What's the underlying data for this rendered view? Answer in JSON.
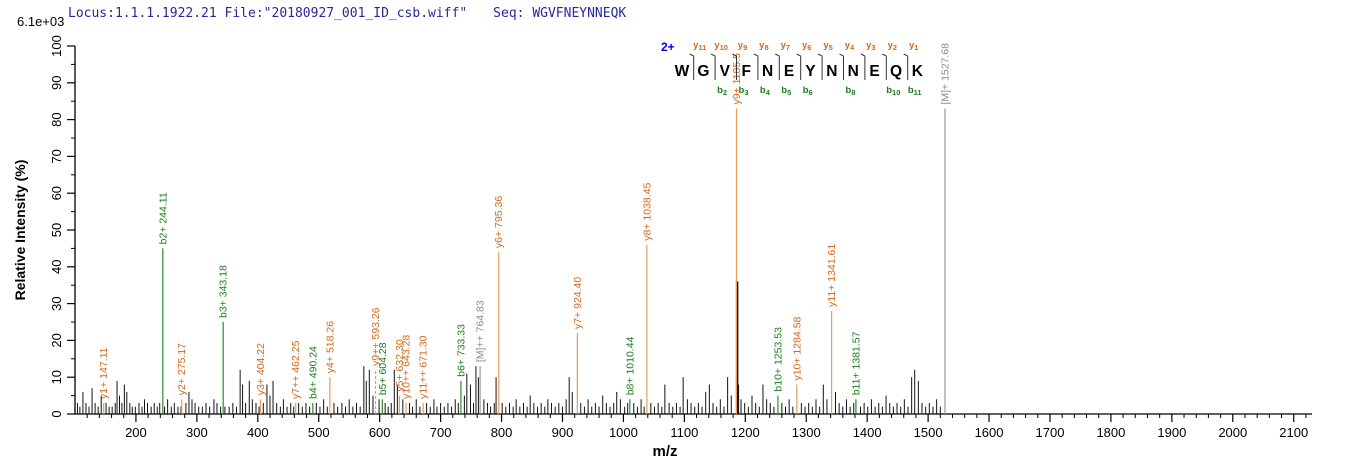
{
  "header": {
    "locus_file": "Locus:1.1.1.1922.21 File:\"20180927_001_ID_csb.wiff\"",
    "seq_prefix": "Seq:",
    "sequence": "WGVFNEYNNEQK"
  },
  "colors": {
    "y_ion_text": "#D2691E",
    "y_ion_line": "#E79B5E",
    "b_ion_text": "#1E7D1E",
    "b_ion_line": "#2E8B2E",
    "precursor_text": "#8C8C8C",
    "precursor_line": "#999999",
    "peak": "#111111",
    "axis": "#000000",
    "title": "#28289B",
    "charge": "#0000EE"
  },
  "sequence_panel": {
    "charge_label": "2+",
    "residues": [
      "W",
      "G",
      "V",
      "F",
      "N",
      "E",
      "Y",
      "N",
      "N",
      "E",
      "Q",
      "K"
    ],
    "fragments": [
      {
        "boundary": 1,
        "y_ion": "y11",
        "b_ion": null
      },
      {
        "boundary": 2,
        "y_ion": "y10",
        "b_ion": "b2"
      },
      {
        "boundary": 3,
        "y_ion": "y9",
        "b_ion": "b3"
      },
      {
        "boundary": 4,
        "y_ion": "y8",
        "b_ion": "b4"
      },
      {
        "boundary": 5,
        "y_ion": "y7",
        "b_ion": "b5"
      },
      {
        "boundary": 6,
        "y_ion": "y6",
        "b_ion": "b6"
      },
      {
        "boundary": 7,
        "y_ion": "y5",
        "b_ion": null
      },
      {
        "boundary": 8,
        "y_ion": "y4",
        "b_ion": "b8"
      },
      {
        "boundary": 9,
        "y_ion": "y3",
        "b_ion": null
      },
      {
        "boundary": 10,
        "y_ion": "y2",
        "b_ion": "b10"
      },
      {
        "boundary": 11,
        "y_ion": "y1",
        "b_ion": "b11"
      }
    ]
  },
  "chart_data": {
    "type": "bar",
    "subtype": "mass-spectrum",
    "title": "",
    "xlabel": "m/z",
    "ylabel": "Relative  Intensity (%)",
    "intensity_scale": "6.1e+03",
    "xlim": [
      100,
      2130
    ],
    "ylim": [
      0,
      100
    ],
    "x_major_ticks": [
      200,
      300,
      400,
      500,
      600,
      700,
      800,
      900,
      1000,
      1100,
      1200,
      1300,
      1400,
      1500,
      1600,
      1700,
      1800,
      1900,
      2000,
      2100
    ],
    "x_minor_step": 20,
    "y_major_ticks": [
      0,
      10,
      20,
      30,
      40,
      50,
      60,
      70,
      80,
      90,
      100
    ],
    "y_minor_step": 5,
    "grid": false,
    "annotated_peaks": [
      {
        "label": "y1+ 147.11",
        "mz": 147.11,
        "intensity": 3,
        "type": "y"
      },
      {
        "label": "b2+ 244.11",
        "mz": 244.11,
        "intensity": 45,
        "type": "b"
      },
      {
        "label": "y2+ 275.17",
        "mz": 275.17,
        "intensity": 4,
        "type": "y"
      },
      {
        "label": "b3+ 343.18",
        "mz": 343.18,
        "intensity": 25,
        "type": "b"
      },
      {
        "label": "y3+ 404.22",
        "mz": 404.22,
        "intensity": 4,
        "type": "y"
      },
      {
        "label": "y7++ 462.25",
        "mz": 462.25,
        "intensity": 3,
        "type": "y"
      },
      {
        "label": "b4+ 490.24",
        "mz": 490.24,
        "intensity": 3,
        "type": "b"
      },
      {
        "label": "y4+ 518.26",
        "mz": 518.26,
        "intensity": 10,
        "type": "y"
      },
      {
        "label": "y9++ 593.26",
        "mz": 593.26,
        "intensity": 12,
        "type": "y",
        "dashed": true
      },
      {
        "label": "b5+ 604.28",
        "mz": 604.28,
        "intensity": 4,
        "type": "b"
      },
      {
        "label": "y5+ 632.30",
        "mz": 632.3,
        "intensity": 5,
        "type": "y"
      },
      {
        "label": "y10++ 643.28",
        "mz": 643.28,
        "intensity": 3,
        "type": "y"
      },
      {
        "label": "y11++ 671.30",
        "mz": 671.3,
        "intensity": 3,
        "type": "y"
      },
      {
        "label": "b6+ 733.33",
        "mz": 733.33,
        "intensity": 9,
        "type": "b"
      },
      {
        "label": "[M]++ 764.83",
        "mz": 764.83,
        "intensity": 13,
        "type": "M"
      },
      {
        "label": "y6+ 795.36",
        "mz": 795.36,
        "intensity": 44,
        "type": "y"
      },
      {
        "label": "y7+ 924.40",
        "mz": 924.4,
        "intensity": 22,
        "type": "y"
      },
      {
        "label": "b8+ 1010.44",
        "mz": 1010.44,
        "intensity": 4,
        "type": "b"
      },
      {
        "label": "y8+ 1038.45",
        "mz": 1038.45,
        "intensity": 46,
        "type": "y"
      },
      {
        "label": "y9+ 1185.5",
        "mz": 1185.5,
        "intensity": 83,
        "type": "y"
      },
      {
        "label": "b10+ 1253.53",
        "mz": 1253.53,
        "intensity": 5,
        "type": "b"
      },
      {
        "label": "y10+ 1284.58",
        "mz": 1284.58,
        "intensity": 8,
        "type": "y"
      },
      {
        "label": "y11+ 1341.61",
        "mz": 1341.61,
        "intensity": 28,
        "type": "y"
      },
      {
        "label": "b11+ 1381.57",
        "mz": 1381.57,
        "intensity": 4,
        "type": "b"
      },
      {
        "label": "[M]+ 1527.68",
        "mz": 1527.68,
        "intensity": 83,
        "type": "M"
      }
    ],
    "background_peaks": [
      [
        104,
        3
      ],
      [
        108,
        2
      ],
      [
        113,
        6
      ],
      [
        118,
        3
      ],
      [
        123,
        2
      ],
      [
        128,
        7
      ],
      [
        133,
        3
      ],
      [
        138,
        2
      ],
      [
        143,
        5
      ],
      [
        151,
        3
      ],
      [
        156,
        2
      ],
      [
        161,
        2
      ],
      [
        166,
        3
      ],
      [
        169,
        9
      ],
      [
        173,
        5
      ],
      [
        177,
        3
      ],
      [
        181,
        8
      ],
      [
        185,
        6
      ],
      [
        190,
        3
      ],
      [
        194,
        2
      ],
      [
        199,
        2
      ],
      [
        205,
        3
      ],
      [
        210,
        2
      ],
      [
        214,
        4
      ],
      [
        219,
        3
      ],
      [
        225,
        2
      ],
      [
        230,
        3
      ],
      [
        235,
        2
      ],
      [
        239,
        3
      ],
      [
        247,
        2
      ],
      [
        252,
        4
      ],
      [
        258,
        2
      ],
      [
        263,
        3
      ],
      [
        269,
        2
      ],
      [
        274,
        2
      ],
      [
        282,
        3
      ],
      [
        287,
        6
      ],
      [
        292,
        4
      ],
      [
        297,
        3
      ],
      [
        303,
        2
      ],
      [
        309,
        2
      ],
      [
        315,
        3
      ],
      [
        321,
        2
      ],
      [
        328,
        4
      ],
      [
        333,
        3
      ],
      [
        339,
        2
      ],
      [
        346,
        2
      ],
      [
        353,
        2
      ],
      [
        359,
        3
      ],
      [
        365,
        2
      ],
      [
        371,
        12
      ],
      [
        375,
        8
      ],
      [
        380,
        3
      ],
      [
        386,
        9
      ],
      [
        391,
        4
      ],
      [
        397,
        3
      ],
      [
        402,
        2
      ],
      [
        409,
        3
      ],
      [
        415,
        8
      ],
      [
        420,
        5
      ],
      [
        425,
        9
      ],
      [
        431,
        3
      ],
      [
        437,
        2
      ],
      [
        442,
        4
      ],
      [
        448,
        2
      ],
      [
        454,
        3
      ],
      [
        459,
        2
      ],
      [
        467,
        3
      ],
      [
        473,
        2
      ],
      [
        479,
        3
      ],
      [
        485,
        2
      ],
      [
        496,
        3
      ],
      [
        502,
        2
      ],
      [
        508,
        4
      ],
      [
        514,
        2
      ],
      [
        525,
        3
      ],
      [
        531,
        2
      ],
      [
        538,
        3
      ],
      [
        544,
        2
      ],
      [
        550,
        4
      ],
      [
        556,
        2
      ],
      [
        562,
        3
      ],
      [
        568,
        2
      ],
      [
        574,
        13
      ],
      [
        578,
        9
      ],
      [
        583,
        12
      ],
      [
        589,
        5
      ],
      [
        599,
        4
      ],
      [
        609,
        3
      ],
      [
        614,
        2
      ],
      [
        619,
        3
      ],
      [
        624,
        12
      ],
      [
        629,
        8
      ],
      [
        638,
        4
      ],
      [
        649,
        3
      ],
      [
        654,
        2
      ],
      [
        660,
        4
      ],
      [
        666,
        2
      ],
      [
        677,
        3
      ],
      [
        683,
        2
      ],
      [
        689,
        4
      ],
      [
        694,
        2
      ],
      [
        700,
        3
      ],
      [
        706,
        2
      ],
      [
        712,
        3
      ],
      [
        718,
        2
      ],
      [
        724,
        4
      ],
      [
        729,
        3
      ],
      [
        739,
        5
      ],
      [
        743,
        11
      ],
      [
        749,
        8
      ],
      [
        754,
        3
      ],
      [
        758,
        13
      ],
      [
        762,
        10
      ],
      [
        771,
        4
      ],
      [
        777,
        3
      ],
      [
        782,
        2
      ],
      [
        788,
        3
      ],
      [
        791,
        10
      ],
      [
        801,
        3
      ],
      [
        807,
        2
      ],
      [
        813,
        3
      ],
      [
        819,
        2
      ],
      [
        824,
        4
      ],
      [
        830,
        2
      ],
      [
        836,
        3
      ],
      [
        842,
        2
      ],
      [
        847,
        5
      ],
      [
        853,
        3
      ],
      [
        859,
        2
      ],
      [
        865,
        3
      ],
      [
        871,
        2
      ],
      [
        876,
        4
      ],
      [
        882,
        3
      ],
      [
        888,
        2
      ],
      [
        894,
        3
      ],
      [
        900,
        2
      ],
      [
        906,
        4
      ],
      [
        911,
        10
      ],
      [
        916,
        6
      ],
      [
        930,
        3
      ],
      [
        936,
        2
      ],
      [
        942,
        4
      ],
      [
        948,
        2
      ],
      [
        954,
        3
      ],
      [
        960,
        2
      ],
      [
        966,
        5
      ],
      [
        972,
        3
      ],
      [
        978,
        2
      ],
      [
        984,
        3
      ],
      [
        989,
        6
      ],
      [
        995,
        4
      ],
      [
        1002,
        2
      ],
      [
        1007,
        3
      ],
      [
        1017,
        3
      ],
      [
        1023,
        2
      ],
      [
        1029,
        4
      ],
      [
        1034,
        2
      ],
      [
        1045,
        3
      ],
      [
        1051,
        2
      ],
      [
        1057,
        3
      ],
      [
        1063,
        2
      ],
      [
        1068,
        8
      ],
      [
        1075,
        3
      ],
      [
        1081,
        2
      ],
      [
        1087,
        3
      ],
      [
        1093,
        2
      ],
      [
        1098,
        10
      ],
      [
        1105,
        4
      ],
      [
        1111,
        3
      ],
      [
        1117,
        2
      ],
      [
        1123,
        3
      ],
      [
        1129,
        2
      ],
      [
        1135,
        6
      ],
      [
        1141,
        8
      ],
      [
        1147,
        3
      ],
      [
        1153,
        2
      ],
      [
        1159,
        4
      ],
      [
        1165,
        2
      ],
      [
        1171,
        10
      ],
      [
        1177,
        5
      ],
      [
        1186.6,
        36
      ],
      [
        1189,
        8
      ],
      [
        1193,
        4
      ],
      [
        1199,
        3
      ],
      [
        1205,
        2
      ],
      [
        1211,
        5
      ],
      [
        1217,
        3
      ],
      [
        1223,
        2
      ],
      [
        1229,
        8
      ],
      [
        1235,
        4
      ],
      [
        1241,
        3
      ],
      [
        1247,
        2
      ],
      [
        1260,
        3
      ],
      [
        1266,
        2
      ],
      [
        1272,
        4
      ],
      [
        1278,
        2
      ],
      [
        1292,
        3
      ],
      [
        1298,
        2
      ],
      [
        1304,
        3
      ],
      [
        1310,
        2
      ],
      [
        1316,
        4
      ],
      [
        1322,
        2
      ],
      [
        1328,
        8
      ],
      [
        1334,
        4
      ],
      [
        1348,
        6
      ],
      [
        1354,
        3
      ],
      [
        1360,
        2
      ],
      [
        1366,
        4
      ],
      [
        1372,
        2
      ],
      [
        1378,
        3
      ],
      [
        1389,
        2
      ],
      [
        1395,
        3
      ],
      [
        1401,
        2
      ],
      [
        1407,
        4
      ],
      [
        1413,
        2
      ],
      [
        1419,
        3
      ],
      [
        1425,
        2
      ],
      [
        1431,
        5
      ],
      [
        1437,
        3
      ],
      [
        1443,
        2
      ],
      [
        1449,
        3
      ],
      [
        1455,
        2
      ],
      [
        1461,
        4
      ],
      [
        1467,
        2
      ],
      [
        1473,
        10
      ],
      [
        1478,
        12
      ],
      [
        1484,
        9
      ],
      [
        1490,
        3
      ],
      [
        1496,
        2
      ],
      [
        1502,
        3
      ],
      [
        1508,
        2
      ],
      [
        1514,
        4
      ],
      [
        1520,
        2
      ]
    ]
  }
}
